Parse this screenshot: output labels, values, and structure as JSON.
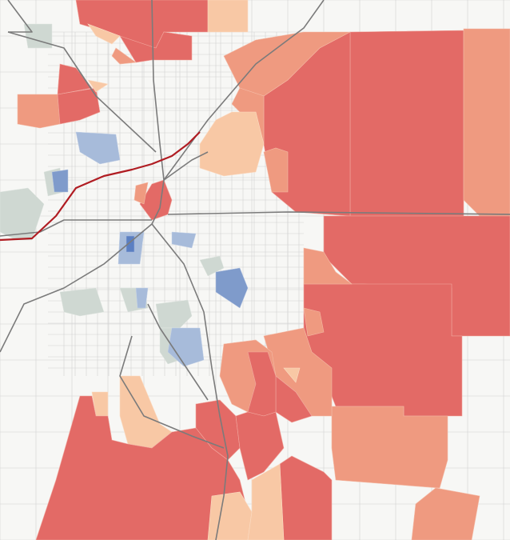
{
  "map": {
    "colors": {
      "background": "#f7f7f5",
      "dark_red": "#e36a66",
      "salmon": "#ef9a80",
      "peach": "#f8c8a5",
      "light_blue": "#a7bbda",
      "medium_blue": "#7f9bcb",
      "dark_blue": "#5b7fc2",
      "gray_green": "#cfd8d2",
      "street_line": "#d2d2d2",
      "highway": "#7b7b7b",
      "highlight_road": "#b01c22"
    }
  }
}
